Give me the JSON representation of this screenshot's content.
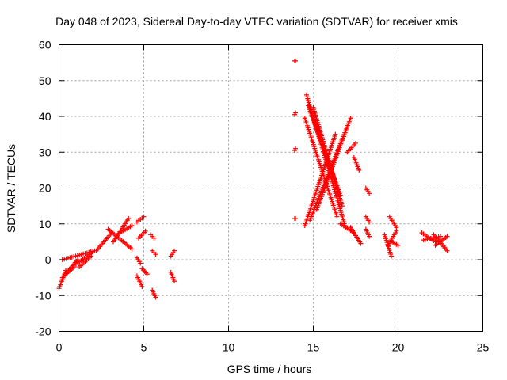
{
  "chart_data": {
    "type": "scatter",
    "title": "Day 048 of 2023, Sidereal Day-to-day VTEC variation (SDTVAR) for receiver xmis",
    "xlabel": "GPS time / hours",
    "ylabel": "SDTVAR / TECUs",
    "xlim": [
      0,
      25
    ],
    "ylim": [
      -20,
      60
    ],
    "x_ticks": [
      0,
      5,
      10,
      15,
      20,
      25
    ],
    "x_tick_labels": [
      "0",
      "5",
      "10",
      "15",
      "20",
      "25"
    ],
    "y_ticks": [
      -20,
      -10,
      0,
      10,
      20,
      30,
      40,
      50,
      60
    ],
    "y_tick_labels": [
      "-20",
      "-10",
      "0",
      "10",
      "20",
      "30",
      "40",
      "50",
      "60"
    ],
    "grid": true,
    "marker": "+",
    "colors": {
      "points": "#ff0000",
      "grid": "#a0a0a0",
      "frame": "#000000"
    },
    "series": [
      {
        "name": "SDTVAR",
        "tracks": [
          {
            "x0": 0.0,
            "x1": 0.4,
            "y0": -8.0,
            "y1": -3.0
          },
          {
            "x0": 0.2,
            "x1": 1.1,
            "y0": -5.0,
            "y1": 0.0
          },
          {
            "x0": 0.4,
            "x1": 0.9,
            "y0": -4.0,
            "y1": -2.0
          },
          {
            "x0": 0.2,
            "x1": 2.1,
            "y0": 0.0,
            "y1": 2.5
          },
          {
            "x0": 0.9,
            "x1": 2.0,
            "y0": -1.5,
            "y1": 2.0
          },
          {
            "x0": 1.2,
            "x1": 1.9,
            "y0": -2.0,
            "y1": 1.0
          },
          {
            "x0": 2.2,
            "x1": 3.1,
            "y0": 2.5,
            "y1": 7.5
          },
          {
            "x0": 2.9,
            "x1": 4.3,
            "y0": 8.5,
            "y1": 3.0
          },
          {
            "x0": 3.2,
            "x1": 4.1,
            "y0": 5.0,
            "y1": 11.5
          },
          {
            "x0": 3.6,
            "x1": 4.3,
            "y0": 7.5,
            "y1": 9.5
          },
          {
            "x0": 4.6,
            "x1": 4.8,
            "y0": 0.5,
            "y1": -1.0
          },
          {
            "x0": 4.6,
            "x1": 4.9,
            "y0": -4.5,
            "y1": -7.5
          },
          {
            "x0": 4.6,
            "x1": 5.0,
            "y0": 10.5,
            "y1": 12.0
          },
          {
            "x0": 4.7,
            "x1": 5.1,
            "y0": 6.0,
            "y1": 8.0
          },
          {
            "x0": 4.9,
            "x1": 5.2,
            "y0": -2.5,
            "y1": -4.0
          },
          {
            "x0": 5.5,
            "x1": 5.7,
            "y0": 2.5,
            "y1": 1.5
          },
          {
            "x0": 5.5,
            "x1": 5.7,
            "y0": -8.5,
            "y1": -10.5
          },
          {
            "x0": 5.4,
            "x1": 5.6,
            "y0": 7.0,
            "y1": 6.0
          },
          {
            "x0": 6.6,
            "x1": 6.8,
            "y0": 1.0,
            "y1": 2.5
          },
          {
            "x0": 6.6,
            "x1": 6.8,
            "y0": -3.5,
            "y1": -6.0
          },
          {
            "x0": 13.9,
            "x1": 13.95,
            "y0": 55.5,
            "y1": 55.5
          },
          {
            "x0": 13.9,
            "x1": 13.95,
            "y0": 40.5,
            "y1": 41.0
          },
          {
            "x0": 13.9,
            "x1": 13.95,
            "y0": 30.5,
            "y1": 31.0
          },
          {
            "x0": 13.9,
            "x1": 13.95,
            "y0": 11.5,
            "y1": 11.5
          },
          {
            "x0": 14.5,
            "x1": 16.4,
            "y0": 39.5,
            "y1": 12.0
          },
          {
            "x0": 14.6,
            "x1": 16.9,
            "y0": 46.0,
            "y1": 9.0
          },
          {
            "x0": 14.7,
            "x1": 16.6,
            "y0": 43.0,
            "y1": 18.0
          },
          {
            "x0": 15.0,
            "x1": 16.7,
            "y0": 42.5,
            "y1": 15.0
          },
          {
            "x0": 14.5,
            "x1": 16.3,
            "y0": 9.5,
            "y1": 35.0
          },
          {
            "x0": 14.8,
            "x1": 17.2,
            "y0": 11.0,
            "y1": 39.5
          },
          {
            "x0": 15.2,
            "x1": 17.0,
            "y0": 14.0,
            "y1": 37.0
          },
          {
            "x0": 16.6,
            "x1": 17.4,
            "y0": 10.0,
            "y1": 7.5
          },
          {
            "x0": 17.0,
            "x1": 17.5,
            "y0": 30.0,
            "y1": 32.5
          },
          {
            "x0": 17.4,
            "x1": 17.7,
            "y0": 28.5,
            "y1": 25.0
          },
          {
            "x0": 17.2,
            "x1": 17.8,
            "y0": 9.0,
            "y1": 4.5
          },
          {
            "x0": 18.1,
            "x1": 18.3,
            "y0": 20.0,
            "y1": 18.5
          },
          {
            "x0": 18.1,
            "x1": 18.3,
            "y0": 12.0,
            "y1": 10.5
          },
          {
            "x0": 18.1,
            "x1": 18.3,
            "y0": 8.5,
            "y1": 6.5
          },
          {
            "x0": 19.2,
            "x1": 19.6,
            "y0": 7.0,
            "y1": 1.0
          },
          {
            "x0": 19.4,
            "x1": 19.9,
            "y0": 4.0,
            "y1": 8.0
          },
          {
            "x0": 19.5,
            "x1": 19.9,
            "y0": 12.0,
            "y1": 9.0
          },
          {
            "x0": 19.6,
            "x1": 20.0,
            "y0": 5.0,
            "y1": 4.0
          },
          {
            "x0": 21.4,
            "x1": 22.2,
            "y0": 7.5,
            "y1": 5.0
          },
          {
            "x0": 21.5,
            "x1": 22.5,
            "y0": 5.5,
            "y1": 6.5
          },
          {
            "x0": 22.1,
            "x1": 22.9,
            "y0": 7.0,
            "y1": 2.5
          },
          {
            "x0": 22.2,
            "x1": 22.9,
            "y0": 4.0,
            "y1": 6.5
          }
        ]
      }
    ]
  }
}
